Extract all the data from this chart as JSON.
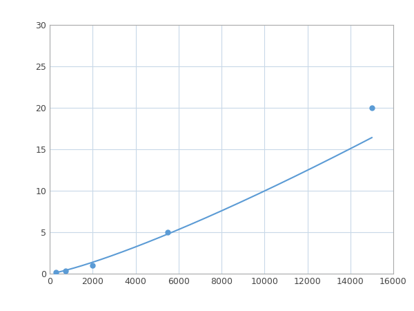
{
  "x_points": [
    300,
    750,
    2000,
    5500,
    15000
  ],
  "y_points": [
    0.2,
    0.3,
    1.0,
    5.0,
    20.0
  ],
  "line_color": "#5b9bd5",
  "marker_color": "#5b9bd5",
  "marker_size": 5,
  "line_width": 1.5,
  "xlim": [
    0,
    16000
  ],
  "ylim": [
    0,
    30
  ],
  "xticks": [
    0,
    2000,
    4000,
    6000,
    8000,
    10000,
    12000,
    14000,
    16000
  ],
  "yticks": [
    0,
    5,
    10,
    15,
    20,
    25,
    30
  ],
  "grid_color": "#c8d8e8",
  "background_color": "#ffffff",
  "fig_width": 6.0,
  "fig_height": 4.5,
  "dpi": 100
}
